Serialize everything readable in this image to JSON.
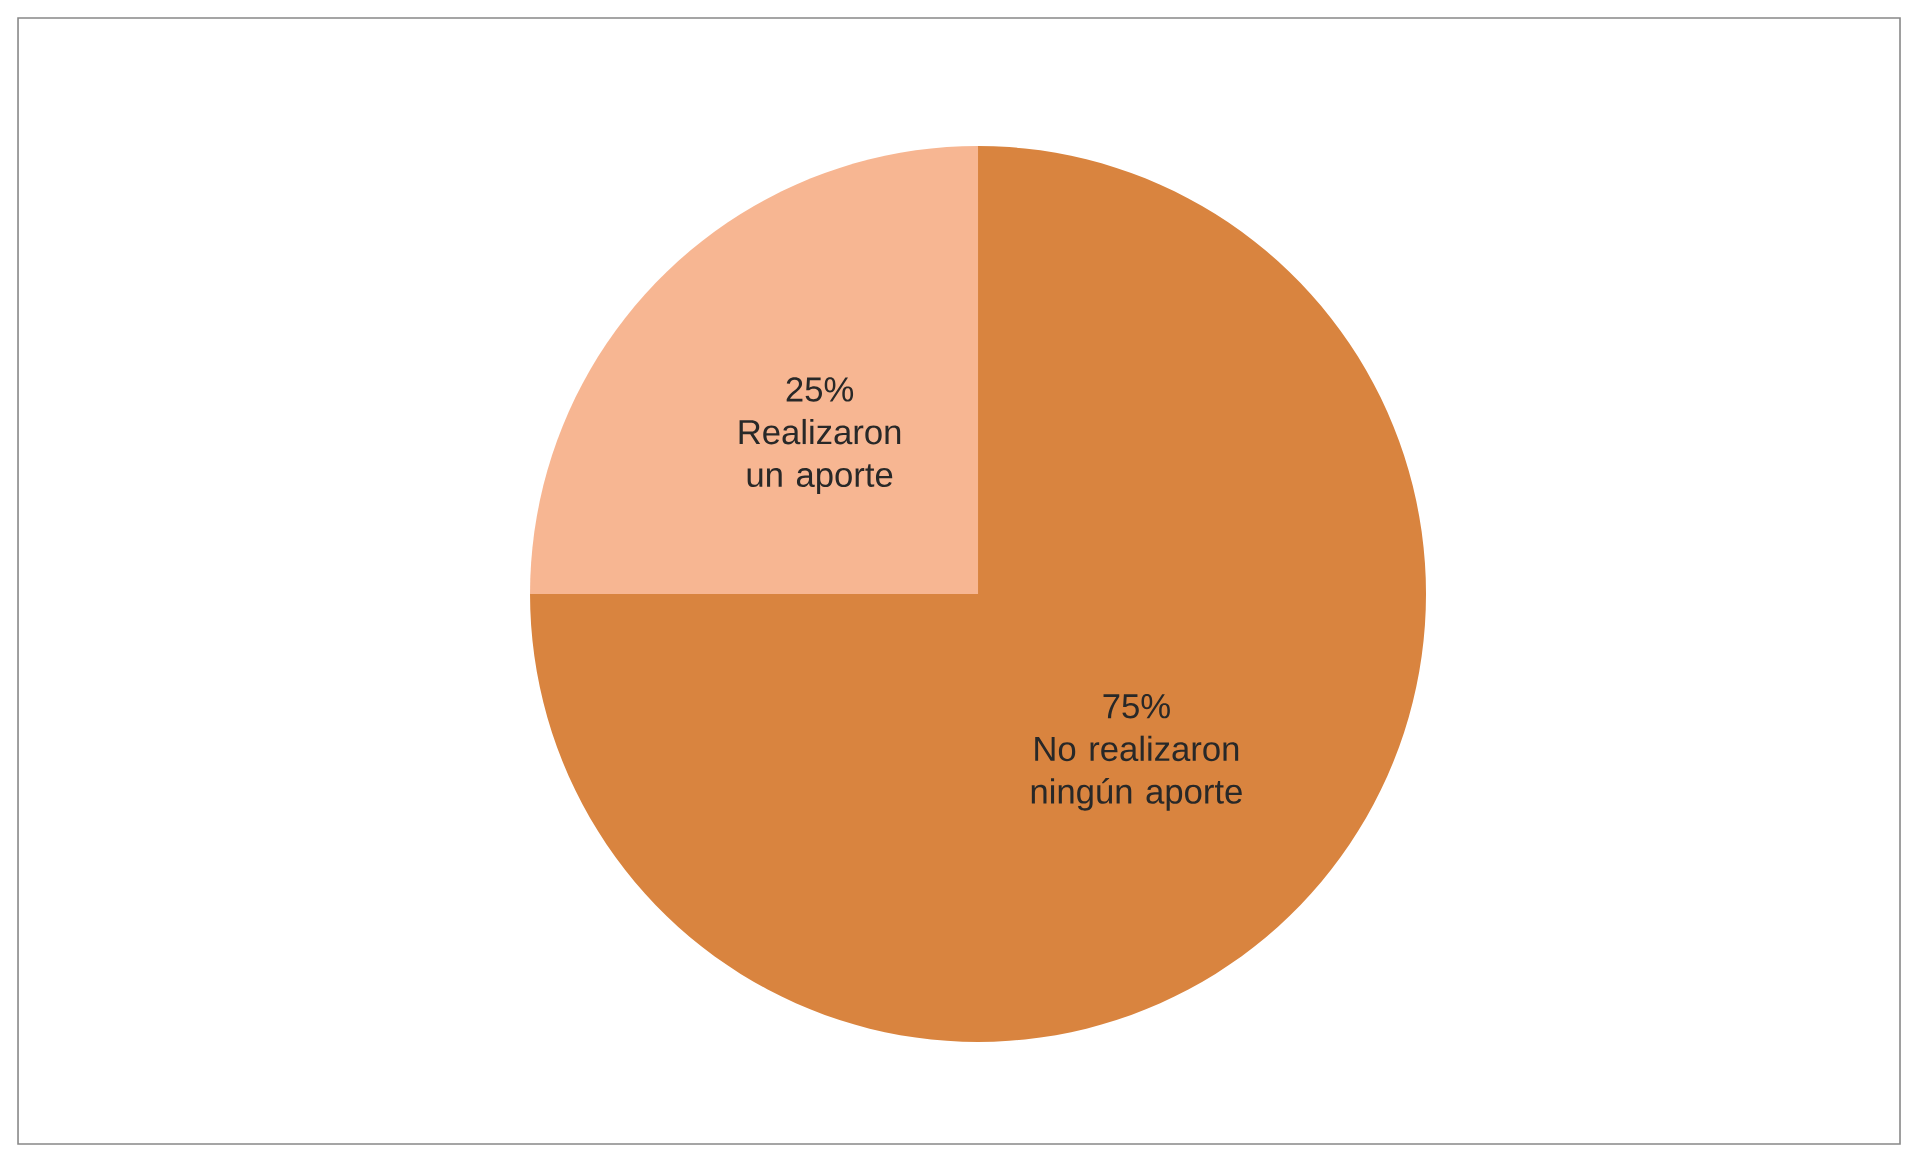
{
  "chart_data": {
    "type": "pie",
    "categories": [
      "No realizaron ningún aporte",
      "Realizaron un aporte"
    ],
    "values": [
      75,
      25
    ],
    "value_labels": [
      "75%",
      "25%"
    ],
    "colors": [
      "#d9843f",
      "#f7b692"
    ]
  }
}
